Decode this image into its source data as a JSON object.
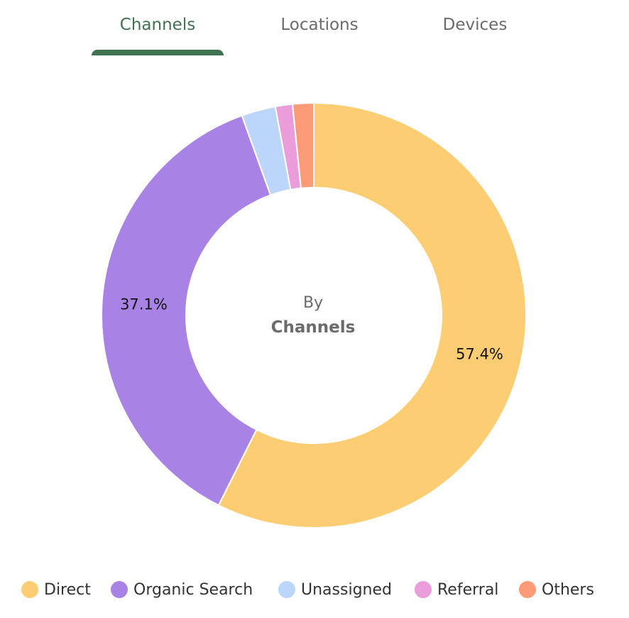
{
  "tabs": [
    {
      "label": "Channels",
      "active": true
    },
    {
      "label": "Locations",
      "active": false
    },
    {
      "label": "Devices",
      "active": false
    }
  ],
  "center": {
    "line1": "By",
    "line2": "Channels"
  },
  "colors": {
    "accent": "#3f7352",
    "direct": "#fdcd73",
    "organic_search": "#a882e4",
    "unassigned": "#bcd6fb",
    "referral": "#ea9cdb",
    "others": "#fb9b77"
  },
  "chart_data": {
    "type": "pie",
    "title": "",
    "categories": [
      "Direct",
      "Organic Search",
      "Unassigned",
      "Referral",
      "Others"
    ],
    "values": [
      57.4,
      37.1,
      2.6,
      1.3,
      1.6
    ],
    "value_labels": [
      "57.4%",
      "37.1%",
      "",
      "",
      ""
    ],
    "colors": [
      "#fdcd73",
      "#a882e4",
      "#bcd6fb",
      "#ea9cdb",
      "#fb9b77"
    ],
    "legend_position": "bottom",
    "donut": true
  }
}
